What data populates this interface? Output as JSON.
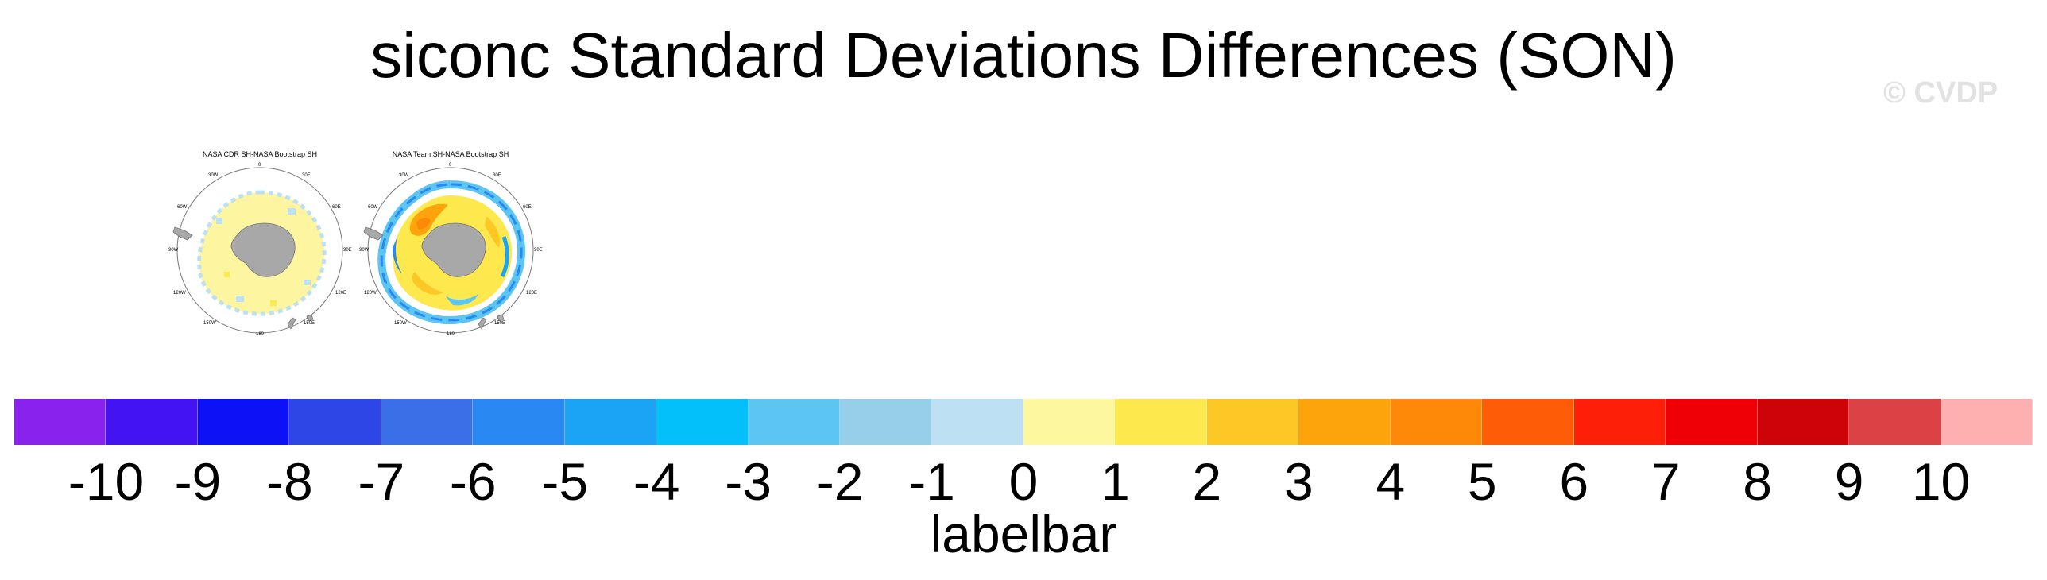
{
  "figure": {
    "title": "siconc Standard Deviations Differences (SON)",
    "watermark": "© CVDP"
  },
  "panels": [
    {
      "title": "NASA CDR SH-NASA Bootstrap SH",
      "lon_labels": {
        "top": "0",
        "top_left": "30W",
        "top_right": "30E",
        "upper_left": "60W",
        "upper_right": "60E",
        "left": "90W",
        "right": "90E",
        "lower_left": "120W",
        "lower_right": "120E",
        "bottom_left": "150W",
        "bottom_right": "150E",
        "bottom": "180"
      }
    },
    {
      "title": "NASA Team SH-NASA Bootstrap SH",
      "lon_labels": {
        "top": "0",
        "top_left": "30W",
        "top_right": "30E",
        "upper_left": "60W",
        "upper_right": "60E",
        "left": "90W",
        "right": "90E",
        "lower_left": "120W",
        "lower_right": "120E",
        "bottom_left": "150W",
        "bottom_right": "150E",
        "bottom": "180"
      }
    }
  ],
  "colorbar": {
    "label": "labelbar",
    "ticks": [
      "-10",
      "-9",
      "-8",
      "-7",
      "-6",
      "-5",
      "-4",
      "-3",
      "-2",
      "-1",
      "0",
      "1",
      "2",
      "3",
      "4",
      "5",
      "6",
      "7",
      "8",
      "9",
      "10"
    ],
    "colors": [
      "#8a22ee",
      "#4313f2",
      "#0d11f5",
      "#2e46e6",
      "#3a6fe8",
      "#2a88f2",
      "#1ba3f5",
      "#04c0fa",
      "#5cc5f2",
      "#98cfe8",
      "#bde1f3",
      "#fdf79f",
      "#fde84d",
      "#fdc826",
      "#fda40d",
      "#fe8807",
      "#fe5c06",
      "#fe1f09",
      "#ef0007",
      "#cd0307",
      "#db4245",
      "#feb0b0"
    ]
  },
  "colors": {
    "land": "#a8a8a8",
    "ocean": "#ffffff",
    "map_outline": "#777777"
  }
}
